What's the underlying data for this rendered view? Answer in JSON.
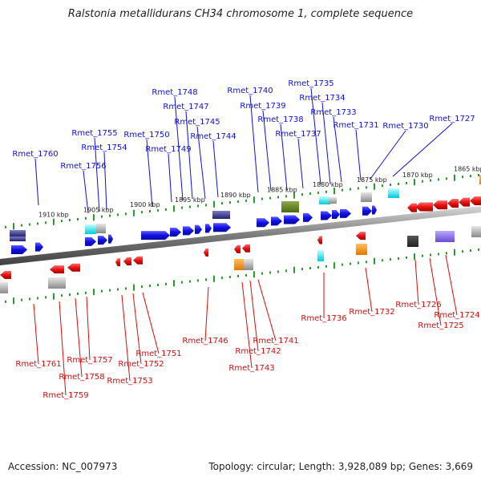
{
  "title": "Ralstonia metallidurans CH34 chromosome 1, complete sequence",
  "footer": {
    "accession": "Accession: NC_007973",
    "info": "Topology: circular; Length: 3,928,089 bp; Genes: 3,669"
  },
  "colors": {
    "upper_gene_label": "#1010cc",
    "lower_gene_label": "#cc1010",
    "forward_strand": "#1a1aee",
    "reverse_strand": "#ee1111",
    "backbone": "#8a8a8a",
    "ruler": "#2a9a2a"
  },
  "scale": {
    "upper_ticks": [
      "1910 kbp",
      "1905 kbp",
      "1900 kbp",
      "1895 kbp",
      "1890 kbp",
      "1885 kbp",
      "1880 kbp",
      "1875 kbp",
      "1870 kbp",
      "1865 kbp"
    ]
  },
  "upper_labels": [
    "Rmet_1760",
    "Rmet_1756",
    "Rmet_1755",
    "Rmet_1754",
    "Rmet_1750",
    "Rmet_1749",
    "Rmet_1748",
    "Rmet_1747",
    "Rmet_1745",
    "Rmet_1744",
    "Rmet_1740",
    "Rmet_1739",
    "Rmet_1738",
    "Rmet_1737",
    "Rmet_1735",
    "Rmet_1734",
    "Rmet_1733",
    "Rmet_1731",
    "Rmet_1730",
    "Rmet_1727"
  ],
  "lower_labels": [
    "Rmet_1761",
    "Rmet_1759",
    "Rmet_1758",
    "Rmet_1757",
    "Rmet_1753",
    "Rmet_1752",
    "Rmet_1751",
    "Rmet_1746",
    "Rmet_1743",
    "Rmet_1742",
    "Rmet_1741",
    "Rmet_1736",
    "Rmet_1732",
    "Rmet_1726",
    "Rmet_1725",
    "Rmet_1724"
  ]
}
